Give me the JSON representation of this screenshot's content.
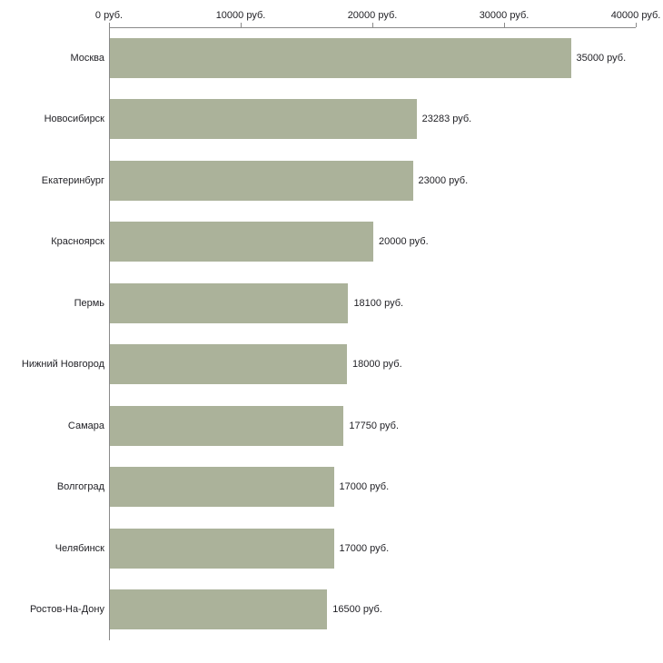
{
  "chart_data": {
    "type": "bar",
    "orientation": "horizontal",
    "title": "",
    "xlabel": "",
    "ylabel": "",
    "categories": [
      "Москва",
      "Новосибирск",
      "Екатеринбург",
      "Красноярск",
      "Пермь",
      "Нижний Новгород",
      "Самара",
      "Волгоград",
      "Челябинск",
      "Ростов-На-Дону"
    ],
    "values": [
      35000,
      23283,
      23000,
      20000,
      18100,
      18000,
      17750,
      17000,
      17000,
      16500
    ],
    "value_labels": [
      "35000 руб.",
      "23283 руб.",
      "23000 руб.",
      "20000 руб.",
      "18100 руб.",
      "18000 руб.",
      "17750 руб.",
      "17000 руб.",
      "17000 руб.",
      "16500 руб."
    ],
    "x_axis": {
      "tick_labels": [
        "0 руб.",
        "10000 руб.",
        "20000 руб.",
        "30000 руб.",
        "40000 руб."
      ],
      "tick_values": [
        0,
        10000,
        20000,
        30000,
        40000
      ],
      "min": 0,
      "max": 40000
    },
    "grid": false,
    "legend": "none",
    "colors": {
      "bar": "#abb29a",
      "axis": "#8a8a8a",
      "text": "#1f1f24",
      "background": "#ffffff"
    }
  }
}
